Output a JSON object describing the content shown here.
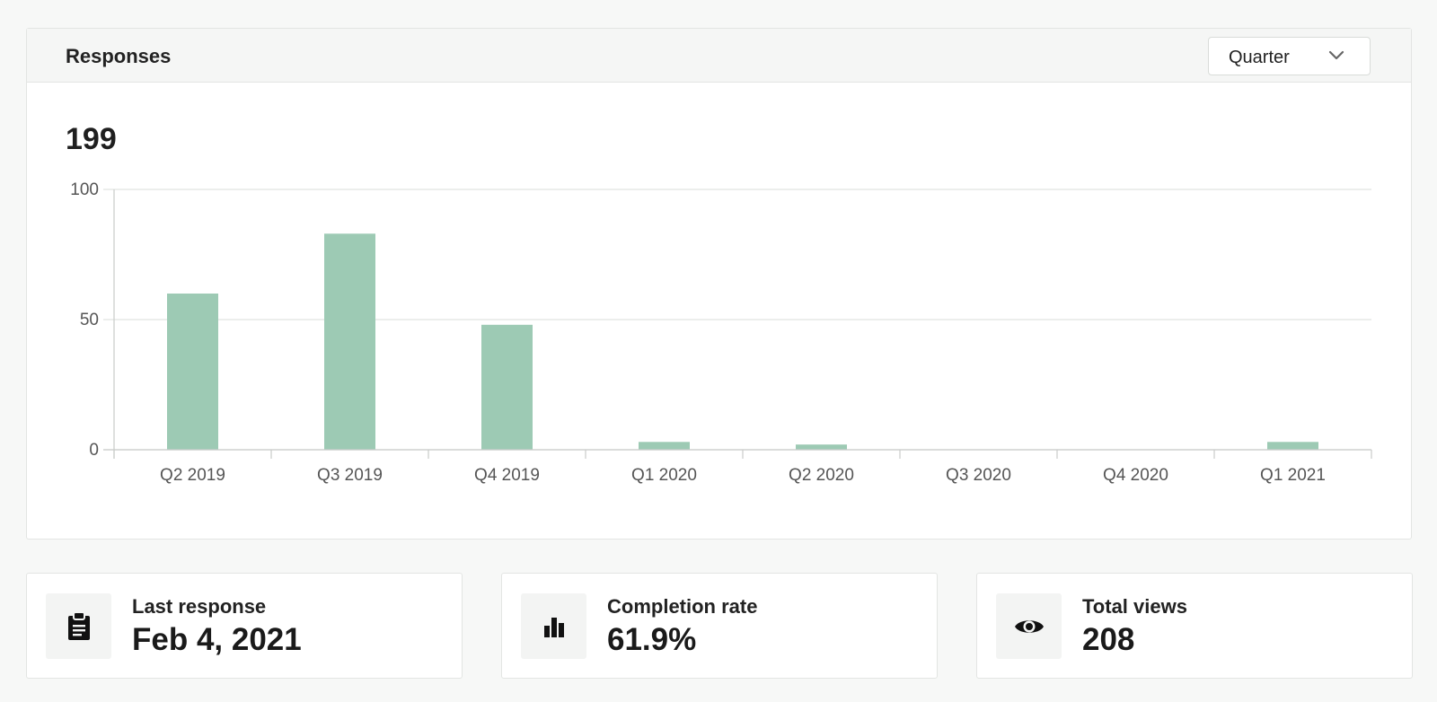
{
  "panel": {
    "title": "Responses",
    "period_select": {
      "value": "Quarter",
      "icon": "chevron-down-icon"
    },
    "total": "199"
  },
  "chart_data": {
    "type": "bar",
    "categories": [
      "Q2 2019",
      "Q3 2019",
      "Q4 2019",
      "Q1 2020",
      "Q2 2020",
      "Q3 2020",
      "Q4 2020",
      "Q1 2021"
    ],
    "values": [
      60,
      83,
      48,
      3,
      2,
      0,
      0,
      3
    ],
    "yticks": [
      "0",
      "50",
      "100"
    ],
    "ylim": [
      0,
      100
    ],
    "grid": true,
    "bar_color": "#9dcab4",
    "title": "",
    "xlabel": "",
    "ylabel": ""
  },
  "stats": [
    {
      "label": "Last response",
      "value": "Feb 4, 2021",
      "icon": "clipboard-icon"
    },
    {
      "label": "Completion rate",
      "value": "61.9%",
      "icon": "bar-chart-icon"
    },
    {
      "label": "Total views",
      "value": "208",
      "icon": "eye-icon"
    }
  ]
}
